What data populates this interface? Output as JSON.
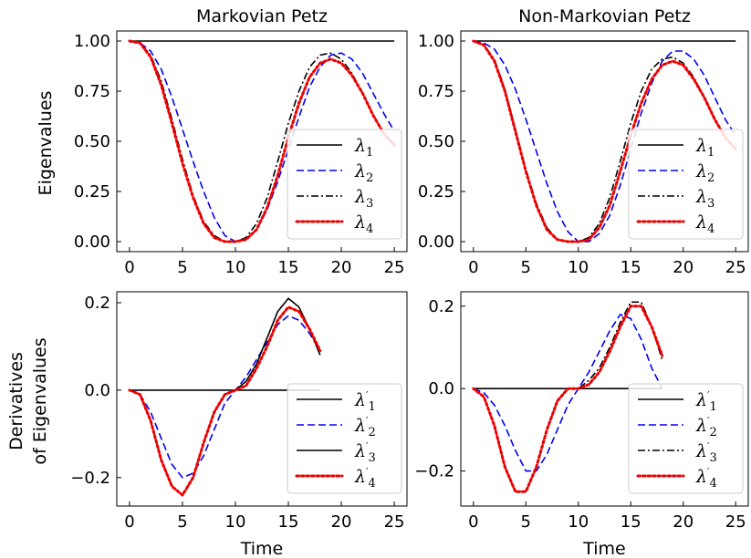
{
  "figure": {
    "ylabel_top": "Eigenvalues",
    "ylabel_bottom_line1": "Derivatives",
    "ylabel_bottom_line2": "of Eigenvalues"
  },
  "chart_data": [
    {
      "id": "tl",
      "type": "line",
      "title": "Markovian Petz",
      "xlabel": "",
      "ylabel": "Eigenvalues",
      "xlim": [
        -1.2,
        26.2
      ],
      "ylim": [
        -0.05,
        1.05
      ],
      "xticks": [
        0,
        5,
        10,
        15,
        20,
        25
      ],
      "yticks": [
        0.0,
        0.25,
        0.5,
        0.75,
        1.0
      ],
      "ytick_labels": [
        "0.00",
        "0.25",
        "0.50",
        "0.75",
        "1.00"
      ],
      "legend": "lower-right",
      "series": [
        {
          "name": "λ1",
          "base": "λ",
          "sub": "1",
          "prime": false,
          "color": "#000000",
          "dash": "solid",
          "x": [
            0,
            1,
            2,
            3,
            4,
            5,
            6,
            7,
            8,
            9,
            10,
            11,
            12,
            13,
            14,
            15,
            16,
            17,
            18,
            19,
            20,
            21,
            22,
            23,
            24,
            25
          ],
          "y": [
            1,
            1,
            1,
            1,
            1,
            1,
            1,
            1,
            1,
            1,
            1,
            1,
            1,
            1,
            1,
            1,
            1,
            1,
            1,
            1,
            1,
            1,
            1,
            1,
            1,
            1
          ]
        },
        {
          "name": "λ2",
          "base": "λ",
          "sub": "2",
          "prime": false,
          "color": "#0000ee",
          "dash": "dashed",
          "x": [
            0,
            1,
            2,
            3,
            4,
            5,
            6,
            7,
            8,
            9,
            10,
            11,
            12,
            13,
            14,
            15,
            16,
            17,
            18,
            19,
            20,
            21,
            22,
            23,
            24,
            25
          ],
          "y": [
            1.0,
            0.99,
            0.95,
            0.86,
            0.72,
            0.56,
            0.4,
            0.25,
            0.12,
            0.03,
            0.0,
            0.01,
            0.06,
            0.16,
            0.3,
            0.46,
            0.62,
            0.77,
            0.87,
            0.93,
            0.94,
            0.91,
            0.84,
            0.74,
            0.64,
            0.55
          ]
        },
        {
          "name": "λ3",
          "base": "λ",
          "sub": "3",
          "prime": false,
          "color": "#000000",
          "dash": "dashdot",
          "x": [
            0,
            1,
            2,
            3,
            4,
            5,
            6,
            7,
            8,
            9,
            10,
            11,
            12,
            13,
            14,
            15,
            16,
            17,
            18,
            19,
            20,
            21,
            22,
            23,
            24,
            25
          ],
          "y": [
            1.0,
            0.99,
            0.93,
            0.8,
            0.61,
            0.41,
            0.23,
            0.1,
            0.03,
            0.0,
            0.0,
            0.02,
            0.09,
            0.22,
            0.4,
            0.59,
            0.75,
            0.87,
            0.93,
            0.94,
            0.91,
            0.84,
            0.74,
            0.63,
            0.54,
            0.48
          ]
        },
        {
          "name": "λ4",
          "base": "λ",
          "sub": "4",
          "prime": false,
          "color": "#ee0000",
          "dash": "dotted",
          "x": [
            0,
            1,
            2,
            3,
            4,
            5,
            6,
            7,
            8,
            9,
            10,
            11,
            12,
            13,
            14,
            15,
            16,
            17,
            18,
            19,
            20,
            21,
            22,
            23,
            24,
            25
          ],
          "y": [
            1.0,
            0.99,
            0.92,
            0.78,
            0.59,
            0.39,
            0.22,
            0.09,
            0.02,
            0.0,
            0.0,
            0.01,
            0.06,
            0.17,
            0.33,
            0.52,
            0.69,
            0.82,
            0.89,
            0.91,
            0.89,
            0.83,
            0.74,
            0.63,
            0.54,
            0.48
          ]
        }
      ]
    },
    {
      "id": "tr",
      "type": "line",
      "title": "Non-Markovian Petz",
      "xlabel": "",
      "ylabel": "",
      "xlim": [
        -1.2,
        26.2
      ],
      "ylim": [
        -0.05,
        1.05
      ],
      "xticks": [
        0,
        5,
        10,
        15,
        20,
        25
      ],
      "yticks": [
        0.0,
        0.25,
        0.5,
        0.75,
        1.0
      ],
      "ytick_labels": [
        "0.00",
        "0.25",
        "0.50",
        "0.75",
        "1.00"
      ],
      "legend": "lower-right",
      "series": [
        {
          "name": "λ1",
          "base": "λ",
          "sub": "1",
          "prime": false,
          "color": "#000000",
          "dash": "solid",
          "x": [
            0,
            1,
            2,
            3,
            4,
            5,
            6,
            7,
            8,
            9,
            10,
            11,
            12,
            13,
            14,
            15,
            16,
            17,
            18,
            19,
            20,
            21,
            22,
            23,
            24,
            25
          ],
          "y": [
            1,
            1,
            1,
            1,
            1,
            1,
            1,
            1,
            1,
            1,
            1,
            1,
            1,
            1,
            1,
            1,
            1,
            1,
            1,
            1,
            1,
            1,
            1,
            1,
            1,
            1
          ]
        },
        {
          "name": "λ2",
          "base": "λ",
          "sub": "2",
          "prime": false,
          "color": "#0000ee",
          "dash": "dashed",
          "x": [
            0,
            1,
            2,
            3,
            4,
            5,
            6,
            7,
            8,
            9,
            10,
            11,
            12,
            13,
            14,
            15,
            16,
            17,
            18,
            19,
            20,
            21,
            22,
            23,
            24,
            25
          ],
          "y": [
            1.0,
            0.99,
            0.96,
            0.88,
            0.76,
            0.61,
            0.45,
            0.29,
            0.15,
            0.05,
            0.0,
            0.0,
            0.04,
            0.13,
            0.28,
            0.46,
            0.64,
            0.79,
            0.9,
            0.95,
            0.95,
            0.91,
            0.83,
            0.72,
            0.61,
            0.53
          ]
        },
        {
          "name": "λ3",
          "base": "λ",
          "sub": "3",
          "prime": false,
          "color": "#000000",
          "dash": "dashdot",
          "x": [
            0,
            1,
            2,
            3,
            4,
            5,
            6,
            7,
            8,
            9,
            10,
            11,
            12,
            13,
            14,
            15,
            16,
            17,
            18,
            19,
            20,
            21,
            22,
            23,
            24,
            25
          ],
          "y": [
            1.0,
            0.98,
            0.91,
            0.76,
            0.56,
            0.36,
            0.19,
            0.07,
            0.01,
            0.0,
            0.0,
            0.02,
            0.09,
            0.22,
            0.4,
            0.59,
            0.75,
            0.86,
            0.91,
            0.92,
            0.89,
            0.82,
            0.72,
            0.61,
            0.52,
            0.46
          ]
        },
        {
          "name": "λ4",
          "base": "λ",
          "sub": "4",
          "prime": false,
          "color": "#ee0000",
          "dash": "dotted",
          "x": [
            0,
            1,
            2,
            3,
            4,
            5,
            6,
            7,
            8,
            9,
            10,
            11,
            12,
            13,
            14,
            15,
            16,
            17,
            18,
            19,
            20,
            21,
            22,
            23,
            24,
            25
          ],
          "y": [
            1.0,
            0.98,
            0.9,
            0.75,
            0.55,
            0.35,
            0.18,
            0.06,
            0.01,
            0.0,
            0.0,
            0.01,
            0.07,
            0.18,
            0.35,
            0.53,
            0.69,
            0.81,
            0.88,
            0.9,
            0.88,
            0.81,
            0.72,
            0.61,
            0.52,
            0.46
          ]
        }
      ]
    },
    {
      "id": "bl",
      "type": "line",
      "title": "",
      "xlabel": "Time",
      "ylabel": "Derivatives of Eigenvalues",
      "xlim": [
        -1.2,
        26.2
      ],
      "ylim": [
        -0.265,
        0.225
      ],
      "xticks": [
        0,
        5,
        10,
        15,
        20,
        25
      ],
      "yticks": [
        -0.2,
        0.0,
        0.2
      ],
      "ytick_labels": [
        "−0.2",
        "0.0",
        "0.2"
      ],
      "legend": "lower-right",
      "series": [
        {
          "name": "λ1′",
          "base": "λ",
          "sub": "1",
          "prime": true,
          "color": "#000000",
          "dash": "solid",
          "x": [
            0,
            1,
            2,
            3,
            4,
            5,
            6,
            7,
            8,
            9,
            10,
            11,
            12,
            13,
            14,
            15,
            16,
            17,
            18
          ],
          "y": [
            0,
            0,
            0,
            0,
            0,
            0,
            0,
            0,
            0,
            0,
            0,
            0,
            0,
            0,
            0,
            0,
            0,
            0,
            0
          ]
        },
        {
          "name": "λ2′",
          "base": "λ",
          "sub": "2",
          "prime": true,
          "color": "#0000ee",
          "dash": "dashed",
          "x": [
            0,
            1,
            2,
            3,
            4,
            5,
            6,
            7,
            8,
            9,
            10,
            11,
            12,
            13,
            14,
            15,
            16,
            17,
            18
          ],
          "y": [
            0.0,
            -0.01,
            -0.05,
            -0.11,
            -0.17,
            -0.2,
            -0.19,
            -0.15,
            -0.09,
            -0.03,
            0.0,
            0.03,
            0.07,
            0.11,
            0.15,
            0.17,
            0.16,
            0.13,
            0.09
          ]
        },
        {
          "name": "λ3′",
          "base": "λ",
          "sub": "3",
          "prime": true,
          "color": "#000000",
          "dash": "solid",
          "x": [
            0,
            1,
            2,
            3,
            4,
            5,
            6,
            7,
            8,
            9,
            10,
            11,
            12,
            13,
            14,
            15,
            16,
            17,
            18
          ],
          "y": [
            0.0,
            -0.01,
            -0.07,
            -0.16,
            -0.22,
            -0.24,
            -0.2,
            -0.12,
            -0.05,
            -0.01,
            0.0,
            0.02,
            0.06,
            0.12,
            0.18,
            0.21,
            0.19,
            0.14,
            0.08
          ]
        },
        {
          "name": "λ4′",
          "base": "λ",
          "sub": "4",
          "prime": true,
          "color": "#ee0000",
          "dash": "dotted",
          "x": [
            0,
            1,
            2,
            3,
            4,
            5,
            6,
            7,
            8,
            9,
            10,
            11,
            12,
            13,
            14,
            15,
            16,
            17,
            18
          ],
          "y": [
            0.0,
            -0.01,
            -0.07,
            -0.16,
            -0.22,
            -0.24,
            -0.2,
            -0.12,
            -0.05,
            -0.01,
            0.0,
            0.01,
            0.05,
            0.1,
            0.16,
            0.19,
            0.18,
            0.14,
            0.09
          ]
        }
      ]
    },
    {
      "id": "br",
      "type": "line",
      "title": "",
      "xlabel": "Time",
      "ylabel": "",
      "xlim": [
        -1.2,
        26.2
      ],
      "ylim": [
        -0.285,
        0.235
      ],
      "xticks": [
        0,
        5,
        10,
        15,
        20,
        25
      ],
      "yticks": [
        -0.2,
        0.0,
        0.2
      ],
      "ytick_labels": [
        "−0.2",
        "0.0",
        "0.2"
      ],
      "legend": "lower-right",
      "series": [
        {
          "name": "λ1′",
          "base": "λ",
          "sub": "1",
          "prime": true,
          "color": "#000000",
          "dash": "solid",
          "x": [
            0,
            1,
            2,
            3,
            4,
            5,
            6,
            7,
            8,
            9,
            10,
            11,
            12,
            13,
            14,
            15,
            16,
            17,
            18
          ],
          "y": [
            0,
            0,
            0,
            0,
            0,
            0,
            0,
            0,
            0,
            0,
            0,
            0,
            0,
            0,
            0,
            0,
            0,
            0,
            0
          ]
        },
        {
          "name": "λ2′",
          "base": "λ",
          "sub": "2",
          "prime": true,
          "color": "#0000ee",
          "dash": "dashed",
          "x": [
            0,
            1,
            2,
            3,
            4,
            5,
            6,
            7,
            8,
            9,
            10,
            11,
            12,
            13,
            14,
            15,
            16,
            17,
            18
          ],
          "y": [
            0.0,
            -0.01,
            -0.04,
            -0.09,
            -0.15,
            -0.2,
            -0.2,
            -0.16,
            -0.1,
            -0.04,
            0.0,
            0.04,
            0.09,
            0.14,
            0.18,
            0.17,
            0.12,
            0.05,
            0.0
          ]
        },
        {
          "name": "λ3′",
          "base": "λ",
          "sub": "3",
          "prime": true,
          "color": "#000000",
          "dash": "dashdot",
          "x": [
            0,
            1,
            2,
            3,
            4,
            5,
            6,
            7,
            8,
            9,
            10,
            11,
            12,
            13,
            14,
            15,
            16,
            17,
            18
          ],
          "y": [
            0.0,
            -0.02,
            -0.09,
            -0.19,
            -0.25,
            -0.25,
            -0.19,
            -0.1,
            -0.03,
            0.0,
            0.0,
            0.02,
            0.05,
            0.1,
            0.16,
            0.21,
            0.21,
            0.15,
            0.07
          ]
        },
        {
          "name": "λ4′",
          "base": "λ",
          "sub": "4",
          "prime": true,
          "color": "#ee0000",
          "dash": "dotted",
          "x": [
            0,
            1,
            2,
            3,
            4,
            5,
            6,
            7,
            8,
            9,
            10,
            11,
            12,
            13,
            14,
            15,
            16,
            17,
            18
          ],
          "y": [
            0.0,
            -0.02,
            -0.09,
            -0.19,
            -0.25,
            -0.25,
            -0.19,
            -0.1,
            -0.03,
            0.0,
            0.0,
            0.01,
            0.04,
            0.09,
            0.15,
            0.2,
            0.2,
            0.15,
            0.08
          ]
        }
      ]
    }
  ]
}
